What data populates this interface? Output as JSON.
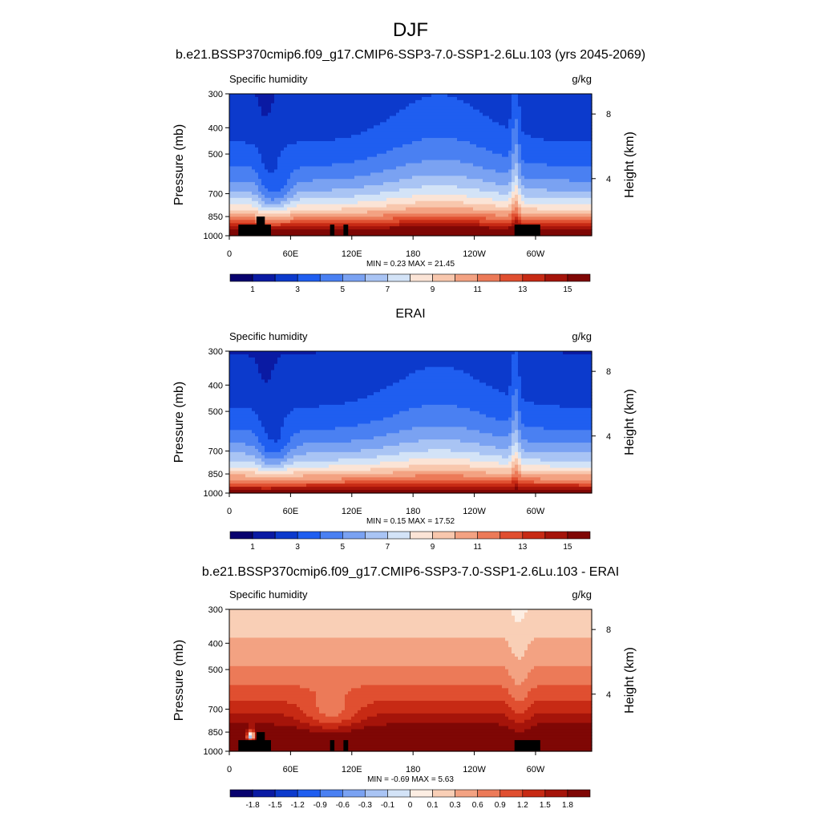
{
  "figure": {
    "title": "DJF"
  },
  "chart_data": [
    {
      "type": "heatmap",
      "title": "b.e21.BSSP370cmip6.f09_g17.CMIP6-SSP3-7.0-SSP1-2.6Lu.103 (yrs 2045-2069)",
      "left_label": "Specific humidity",
      "right_label": "g/kg",
      "xlabel": "",
      "ylabel": "Pressure (mb)",
      "y2label": "Height (km)",
      "x_ticks": [
        "0",
        "60E",
        "120E",
        "180",
        "120W",
        "60W"
      ],
      "y_ticks": [
        "300",
        "400",
        "500",
        "700",
        "850",
        "1000"
      ],
      "y2_ticks": [
        "8",
        "4"
      ],
      "ylim": [
        1000,
        300
      ],
      "field": "absolute",
      "stats": "MIN =   0.23  MAX =  21.45",
      "min": 0.23,
      "max": 21.45,
      "colorbar_labels": [
        "1",
        "3",
        "5",
        "7",
        "9",
        "11",
        "13",
        "15"
      ],
      "colorbar_levels": [
        0.5,
        1,
        2,
        3,
        4,
        5,
        6,
        7,
        8,
        9,
        10,
        11,
        12,
        13,
        14,
        15
      ],
      "has_topography": true
    },
    {
      "type": "heatmap",
      "title": "ERAI",
      "left_label": "Specific humidity",
      "right_label": "g/kg",
      "xlabel": "",
      "ylabel": "Pressure (mb)",
      "y2label": "Height (km)",
      "x_ticks": [
        "0",
        "60E",
        "120E",
        "180",
        "120W",
        "60W"
      ],
      "y_ticks": [
        "300",
        "400",
        "500",
        "700",
        "850",
        "1000"
      ],
      "y2_ticks": [
        "8",
        "4"
      ],
      "ylim": [
        1000,
        300
      ],
      "field": "absolute",
      "stats": "MIN =   0.15  MAX =  17.52",
      "min": 0.15,
      "max": 17.52,
      "colorbar_labels": [
        "1",
        "3",
        "5",
        "7",
        "9",
        "11",
        "13",
        "15"
      ],
      "colorbar_levels": [
        0.5,
        1,
        2,
        3,
        4,
        5,
        6,
        7,
        8,
        9,
        10,
        11,
        12,
        13,
        14,
        15
      ],
      "has_topography": false
    },
    {
      "type": "heatmap",
      "title": "b.e21.BSSP370cmip6.f09_g17.CMIP6-SSP3-7.0-SSP1-2.6Lu.103 - ERAI",
      "left_label": "Specific humidity",
      "right_label": "g/kg",
      "xlabel": "",
      "ylabel": "Pressure (mb)",
      "y2label": "Height (km)",
      "x_ticks": [
        "0",
        "60E",
        "120E",
        "180",
        "120W",
        "60W"
      ],
      "y_ticks": [
        "300",
        "400",
        "500",
        "700",
        "850",
        "1000"
      ],
      "y2_ticks": [
        "8",
        "4"
      ],
      "ylim": [
        1000,
        300
      ],
      "field": "difference",
      "stats": "MIN =  -0.69  MAX =   5.63",
      "min": -0.69,
      "max": 5.63,
      "colorbar_labels": [
        "-1.8",
        "-1.5",
        "-1.2",
        "-0.9",
        "-0.6",
        "-0.3",
        "-0.1",
        "0",
        "0.1",
        "0.3",
        "0.6",
        "0.9",
        "1.2",
        "1.5",
        "1.8"
      ],
      "colorbar_levels": [
        -1.8,
        -1.5,
        -1.2,
        -0.9,
        -0.6,
        -0.3,
        -0.1,
        0,
        0.1,
        0.3,
        0.6,
        0.9,
        1.2,
        1.5,
        1.8
      ],
      "has_topography": true
    }
  ],
  "colors": {
    "abs_palette": [
      "#08026e",
      "#0a1aa3",
      "#0c3acc",
      "#1f5ef0",
      "#4a80f2",
      "#7aa2f2",
      "#a9c4f4",
      "#d3e3f7",
      "#fbe4d6",
      "#f8c7ad",
      "#f3a282",
      "#ec7a58",
      "#e04f30",
      "#c72a14",
      "#a5140a",
      "#7f0705"
    ],
    "diff_palette": [
      "#08026e",
      "#0a1aa3",
      "#0c3acc",
      "#1f5ef0",
      "#4a80f2",
      "#7aa2f2",
      "#a9c4f4",
      "#d3e3f7",
      "#fdeee3",
      "#f9cfb6",
      "#f3a282",
      "#ec7a58",
      "#e04f30",
      "#c72a14",
      "#a5140a",
      "#7f0705"
    ],
    "topography": "#000000"
  }
}
